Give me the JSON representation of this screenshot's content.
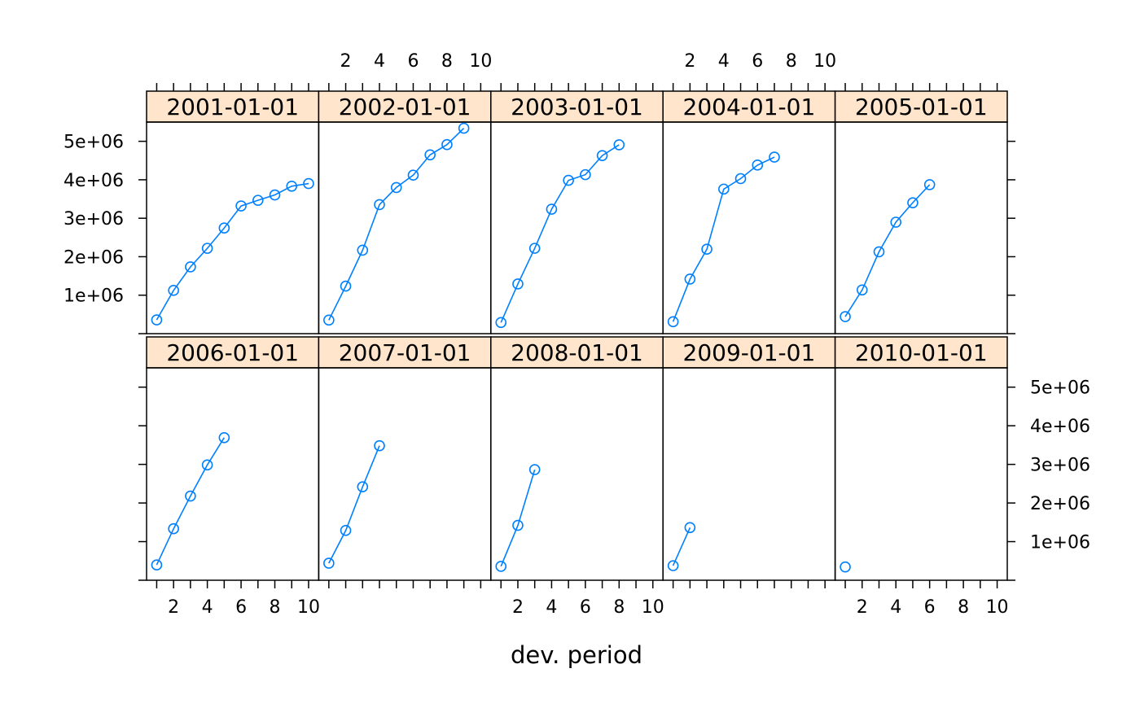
{
  "chart_data": {
    "type": "line",
    "layout": "lattice panels, 5 columns x 2 rows",
    "xlabel": "dev. period",
    "ylabel": "",
    "xlim": [
      0.4,
      10.6
    ],
    "ylim": [
      0,
      5500000
    ],
    "x_ticks": [
      2,
      4,
      6,
      8,
      10
    ],
    "x_tick_labels": [
      "2",
      "4",
      "6",
      "8",
      "10"
    ],
    "y_ticks": [
      1000000,
      2000000,
      3000000,
      4000000,
      5000000
    ],
    "y_tick_labels": [
      "1e+06",
      "2e+06",
      "3e+06",
      "4e+06",
      "5e+06"
    ],
    "colors": {
      "series": "#0080ff",
      "strip_fill": "#ffe5cc",
      "panel_border": "#000000"
    },
    "series": [
      {
        "name": "2001-01-01",
        "x": [
          1,
          2,
          3,
          4,
          5,
          6,
          7,
          8,
          9,
          10
        ],
        "values": [
          357848,
          1124788,
          1735330,
          2218270,
          2745596,
          3319994,
          3466336,
          3606286,
          3833515,
          3901463
        ]
      },
      {
        "name": "2002-01-01",
        "x": [
          1,
          2,
          3,
          4,
          5,
          6,
          7,
          8,
          9
        ],
        "values": [
          352118,
          1236139,
          2170033,
          3353322,
          3799067,
          4120063,
          4647867,
          4914039,
          5339085
        ]
      },
      {
        "name": "2003-01-01",
        "x": [
          1,
          2,
          3,
          4,
          5,
          6,
          7,
          8
        ],
        "values": [
          290507,
          1292306,
          2218525,
          3235179,
          3985995,
          4132918,
          4628910,
          4909315
        ]
      },
      {
        "name": "2004-01-01",
        "x": [
          1,
          2,
          3,
          4,
          5,
          6,
          7
        ],
        "values": [
          310608,
          1418858,
          2195047,
          3757447,
          4029929,
          4381982,
          4588268
        ]
      },
      {
        "name": "2005-01-01",
        "x": [
          1,
          2,
          3,
          4,
          5,
          6
        ],
        "values": [
          443160,
          1136350,
          2128333,
          2897821,
          3402672,
          3873311
        ]
      },
      {
        "name": "2006-01-01",
        "x": [
          1,
          2,
          3,
          4,
          5
        ],
        "values": [
          396132,
          1333217,
          2180715,
          2985752,
          3691712
        ]
      },
      {
        "name": "2007-01-01",
        "x": [
          1,
          2,
          3,
          4
        ],
        "values": [
          440832,
          1288463,
          2419861,
          3483130
        ]
      },
      {
        "name": "2008-01-01",
        "x": [
          1,
          2,
          3
        ],
        "values": [
          359480,
          1421128,
          2864498
        ]
      },
      {
        "name": "2009-01-01",
        "x": [
          1,
          2
        ],
        "values": [
          376686,
          1363294
        ]
      },
      {
        "name": "2010-01-01",
        "x": [
          1
        ],
        "values": [
          344014
        ]
      }
    ]
  }
}
